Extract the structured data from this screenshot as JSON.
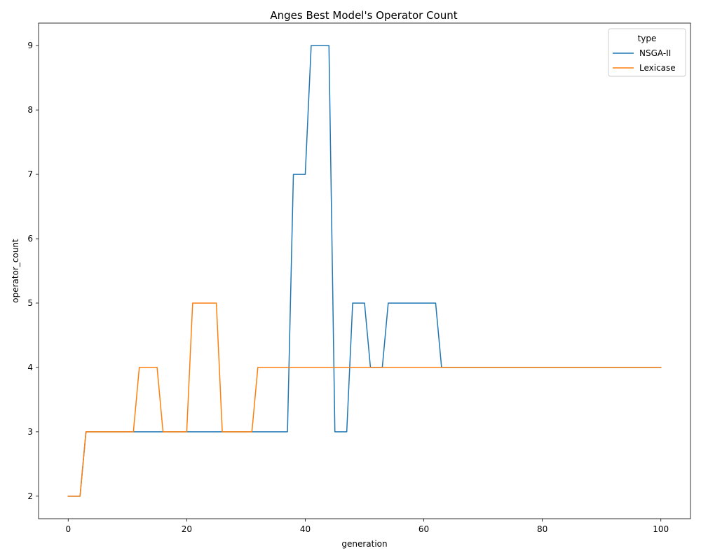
{
  "chart_data": {
    "type": "line",
    "title": "Anges Best Model's Operator Count",
    "xlabel": "generation",
    "ylabel": "operator_count",
    "xlim": [
      -5,
      105
    ],
    "ylim": [
      1.65,
      9.35
    ],
    "xticks": [
      0,
      20,
      40,
      60,
      80,
      100
    ],
    "yticks": [
      2,
      3,
      4,
      5,
      6,
      7,
      8,
      9
    ],
    "grid": false,
    "legend": {
      "title": "type",
      "position": "top-right"
    },
    "series": [
      {
        "name": "NSGA-II",
        "color": "#1f77b4",
        "points": [
          [
            0,
            2
          ],
          [
            2,
            2
          ],
          [
            3,
            3
          ],
          [
            37,
            3
          ],
          [
            38,
            7
          ],
          [
            40,
            7
          ],
          [
            41,
            9
          ],
          [
            44,
            9
          ],
          [
            45,
            3
          ],
          [
            47,
            3
          ],
          [
            48,
            5
          ],
          [
            50,
            5
          ],
          [
            51,
            4
          ],
          [
            53,
            4
          ],
          [
            54,
            5
          ],
          [
            62,
            5
          ],
          [
            63,
            4
          ],
          [
            100,
            4
          ]
        ]
      },
      {
        "name": "Lexicase",
        "color": "#ff7f0e",
        "points": [
          [
            0,
            2
          ],
          [
            2,
            2
          ],
          [
            3,
            3
          ],
          [
            11,
            3
          ],
          [
            12,
            4
          ],
          [
            15,
            4
          ],
          [
            16,
            3
          ],
          [
            20,
            3
          ],
          [
            21,
            5
          ],
          [
            25,
            5
          ],
          [
            26,
            3
          ],
          [
            31,
            3
          ],
          [
            32,
            4
          ],
          [
            100,
            4
          ]
        ]
      }
    ]
  }
}
